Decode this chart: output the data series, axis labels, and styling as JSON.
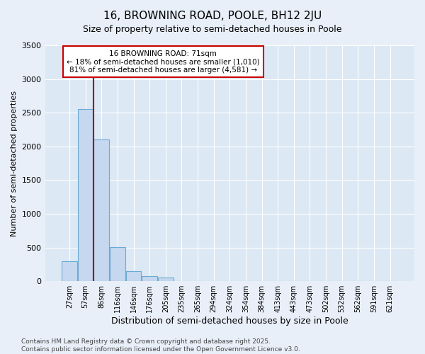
{
  "title1": "16, BROWNING ROAD, POOLE, BH12 2JU",
  "title2": "Size of property relative to semi-detached houses in Poole",
  "xlabel": "Distribution of semi-detached houses by size in Poole",
  "ylabel": "Number of semi-detached properties",
  "categories": [
    "27sqm",
    "57sqm",
    "86sqm",
    "116sqm",
    "146sqm",
    "176sqm",
    "205sqm",
    "235sqm",
    "265sqm",
    "294sqm",
    "324sqm",
    "354sqm",
    "384sqm",
    "413sqm",
    "443sqm",
    "473sqm",
    "502sqm",
    "532sqm",
    "562sqm",
    "591sqm",
    "621sqm"
  ],
  "values": [
    300,
    2550,
    2100,
    510,
    150,
    80,
    50,
    0,
    0,
    0,
    0,
    0,
    0,
    0,
    0,
    0,
    0,
    0,
    0,
    0,
    0
  ],
  "bar_color": "#c5d8ef",
  "bar_edge_color": "#6aaad4",
  "red_line_color": "#990000",
  "red_line_x": 1.5,
  "annotation_title": "16 BROWNING ROAD: 71sqm",
  "annotation_line1": "← 18% of semi-detached houses are smaller (1,010)",
  "annotation_line2": "81% of semi-detached houses are larger (4,581) →",
  "annotation_box_color": "#ffffff",
  "annotation_border_color": "#cc0000",
  "ylim": [
    0,
    3500
  ],
  "yticks": [
    0,
    500,
    1000,
    1500,
    2000,
    2500,
    3000,
    3500
  ],
  "footer1": "Contains HM Land Registry data © Crown copyright and database right 2025.",
  "footer2": "Contains public sector information licensed under the Open Government Licence v3.0.",
  "bg_color": "#e8eff8",
  "plot_bg_color": "#dce8f4",
  "grid_color": "#ffffff",
  "title1_fontsize": 11,
  "title2_fontsize": 9,
  "xlabel_fontsize": 9,
  "ylabel_fontsize": 8,
  "xtick_fontsize": 7,
  "ytick_fontsize": 8,
  "footer_fontsize": 6.5
}
